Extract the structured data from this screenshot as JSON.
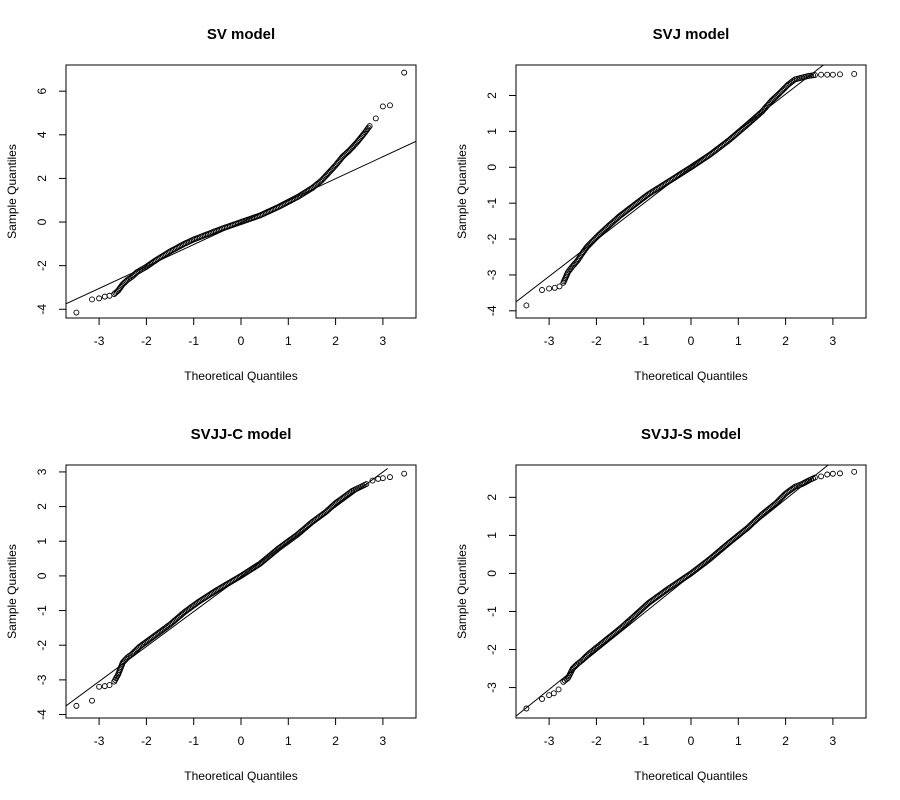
{
  "chart_data": [
    {
      "type": "scatter",
      "title": "SV model",
      "xlabel": "Theoretical Quantiles",
      "ylabel": "Sample Quantiles",
      "xlim": [
        -3.7,
        3.7
      ],
      "ylim": [
        -4.4,
        7.2
      ],
      "xticks": [
        -3,
        -2,
        -1,
        0,
        1,
        2,
        3
      ],
      "yticks": [
        -4,
        -2,
        0,
        2,
        4,
        6
      ],
      "line": [
        [
          -3.7,
          -3.75
        ],
        [
          3.7,
          3.7
        ]
      ],
      "points": [
        [
          -3.48,
          -4.15
        ],
        [
          -3.15,
          -3.55
        ],
        [
          -3.0,
          -3.5
        ],
        [
          -2.88,
          -3.42
        ],
        [
          -2.78,
          -3.38
        ],
        [
          -2.68,
          -3.3
        ],
        [
          -2.6,
          -3.15
        ],
        [
          -2.5,
          -2.85
        ],
        [
          -2.4,
          -2.65
        ],
        [
          -2.3,
          -2.5
        ],
        [
          -2.2,
          -2.3
        ],
        [
          -2.0,
          -2.05
        ],
        [
          -1.8,
          -1.75
        ],
        [
          -1.5,
          -1.35
        ],
        [
          -1.2,
          -1.0
        ],
        [
          -1.0,
          -0.8
        ],
        [
          -0.7,
          -0.55
        ],
        [
          -0.4,
          -0.3
        ],
        [
          0.0,
          0.0
        ],
        [
          0.4,
          0.3
        ],
        [
          0.8,
          0.7
        ],
        [
          1.2,
          1.15
        ],
        [
          1.5,
          1.55
        ],
        [
          1.7,
          1.9
        ],
        [
          1.85,
          2.25
        ],
        [
          2.0,
          2.6
        ],
        [
          2.15,
          3.0
        ],
        [
          2.3,
          3.3
        ],
        [
          2.45,
          3.65
        ],
        [
          2.6,
          4.05
        ],
        [
          2.72,
          4.4
        ],
        [
          2.85,
          4.75
        ],
        [
          3.0,
          5.3
        ],
        [
          3.15,
          5.35
        ],
        [
          3.45,
          6.85
        ]
      ]
    },
    {
      "type": "scatter",
      "title": "SVJ model",
      "xlabel": "Theoretical Quantiles",
      "ylabel": "Sample Quantiles",
      "xlim": [
        -3.7,
        3.7
      ],
      "ylim": [
        -4.2,
        2.85
      ],
      "xticks": [
        -3,
        -2,
        -1,
        0,
        1,
        2,
        3
      ],
      "yticks": [
        -4,
        -3,
        -2,
        -1,
        0,
        1,
        2
      ],
      "line": [
        [
          -3.7,
          -3.75
        ],
        [
          2.8,
          2.85
        ]
      ],
      "points": [
        [
          -3.48,
          -3.85
        ],
        [
          -3.15,
          -3.42
        ],
        [
          -3.0,
          -3.38
        ],
        [
          -2.88,
          -3.36
        ],
        [
          -2.78,
          -3.32
        ],
        [
          -2.7,
          -3.22
        ],
        [
          -2.6,
          -2.92
        ],
        [
          -2.5,
          -2.75
        ],
        [
          -2.4,
          -2.6
        ],
        [
          -2.3,
          -2.4
        ],
        [
          -2.2,
          -2.22
        ],
        [
          -2.0,
          -1.95
        ],
        [
          -1.8,
          -1.7
        ],
        [
          -1.5,
          -1.35
        ],
        [
          -1.2,
          -1.05
        ],
        [
          -0.9,
          -0.75
        ],
        [
          -0.5,
          -0.42
        ],
        [
          0.0,
          0.0
        ],
        [
          0.4,
          0.35
        ],
        [
          0.8,
          0.75
        ],
        [
          1.2,
          1.2
        ],
        [
          1.5,
          1.55
        ],
        [
          1.7,
          1.85
        ],
        [
          1.9,
          2.1
        ],
        [
          2.05,
          2.3
        ],
        [
          2.2,
          2.45
        ],
        [
          2.35,
          2.5
        ],
        [
          2.5,
          2.55
        ],
        [
          2.62,
          2.57
        ],
        [
          2.75,
          2.58
        ],
        [
          2.88,
          2.58
        ],
        [
          3.0,
          2.58
        ],
        [
          3.15,
          2.59
        ],
        [
          3.45,
          2.6
        ]
      ]
    },
    {
      "type": "scatter",
      "title": "SVJJ-C model",
      "xlabel": "Theoretical Quantiles",
      "ylabel": "Sample Quantiles",
      "xlim": [
        -3.7,
        3.7
      ],
      "ylim": [
        -4.1,
        3.2
      ],
      "xticks": [
        -3,
        -2,
        -1,
        0,
        1,
        2,
        3
      ],
      "yticks": [
        -4,
        -3,
        -2,
        -1,
        0,
        1,
        2,
        3
      ],
      "line": [
        [
          -3.7,
          -3.75
        ],
        [
          3.1,
          3.1
        ]
      ],
      "points": [
        [
          -3.48,
          -3.75
        ],
        [
          -3.15,
          -3.6
        ],
        [
          -3.0,
          -3.2
        ],
        [
          -2.88,
          -3.18
        ],
        [
          -2.78,
          -3.15
        ],
        [
          -2.68,
          -3.05
        ],
        [
          -2.6,
          -2.85
        ],
        [
          -2.5,
          -2.5
        ],
        [
          -2.4,
          -2.35
        ],
        [
          -2.3,
          -2.25
        ],
        [
          -2.15,
          -2.05
        ],
        [
          -2.0,
          -1.9
        ],
        [
          -1.8,
          -1.7
        ],
        [
          -1.5,
          -1.4
        ],
        [
          -1.2,
          -1.05
        ],
        [
          -0.9,
          -0.75
        ],
        [
          -0.5,
          -0.4
        ],
        [
          0.0,
          0.0
        ],
        [
          0.4,
          0.35
        ],
        [
          0.8,
          0.8
        ],
        [
          1.2,
          1.2
        ],
        [
          1.5,
          1.55
        ],
        [
          1.8,
          1.85
        ],
        [
          2.0,
          2.1
        ],
        [
          2.2,
          2.3
        ],
        [
          2.35,
          2.45
        ],
        [
          2.5,
          2.55
        ],
        [
          2.65,
          2.65
        ],
        [
          2.78,
          2.75
        ],
        [
          2.9,
          2.8
        ],
        [
          3.0,
          2.82
        ],
        [
          3.15,
          2.85
        ],
        [
          3.45,
          2.95
        ]
      ]
    },
    {
      "type": "scatter",
      "title": "SVJJ-S model",
      "xlabel": "Theoretical Quantiles",
      "ylabel": "Sample Quantiles",
      "xlim": [
        -3.7,
        3.7
      ],
      "ylim": [
        -3.8,
        2.85
      ],
      "xticks": [
        -3,
        -2,
        -1,
        0,
        1,
        2,
        3
      ],
      "yticks": [
        -3,
        -2,
        -1,
        0,
        1,
        2
      ],
      "line": [
        [
          -3.7,
          -3.75
        ],
        [
          2.9,
          2.85
        ]
      ],
      "points": [
        [
          -3.48,
          -3.55
        ],
        [
          -3.15,
          -3.3
        ],
        [
          -3.0,
          -3.2
        ],
        [
          -2.9,
          -3.15
        ],
        [
          -2.8,
          -3.05
        ],
        [
          -2.7,
          -2.85
        ],
        [
          -2.6,
          -2.75
        ],
        [
          -2.5,
          -2.5
        ],
        [
          -2.4,
          -2.38
        ],
        [
          -2.3,
          -2.28
        ],
        [
          -2.15,
          -2.1
        ],
        [
          -2.0,
          -1.95
        ],
        [
          -1.8,
          -1.75
        ],
        [
          -1.5,
          -1.45
        ],
        [
          -1.2,
          -1.12
        ],
        [
          -0.9,
          -0.78
        ],
        [
          -0.5,
          -0.42
        ],
        [
          0.0,
          0.0
        ],
        [
          0.4,
          0.38
        ],
        [
          0.8,
          0.8
        ],
        [
          1.2,
          1.2
        ],
        [
          1.5,
          1.55
        ],
        [
          1.8,
          1.85
        ],
        [
          2.0,
          2.1
        ],
        [
          2.2,
          2.28
        ],
        [
          2.35,
          2.35
        ],
        [
          2.5,
          2.45
        ],
        [
          2.62,
          2.52
        ],
        [
          2.75,
          2.55
        ],
        [
          2.88,
          2.6
        ],
        [
          3.0,
          2.62
        ],
        [
          3.15,
          2.63
        ],
        [
          3.45,
          2.67
        ]
      ]
    }
  ]
}
